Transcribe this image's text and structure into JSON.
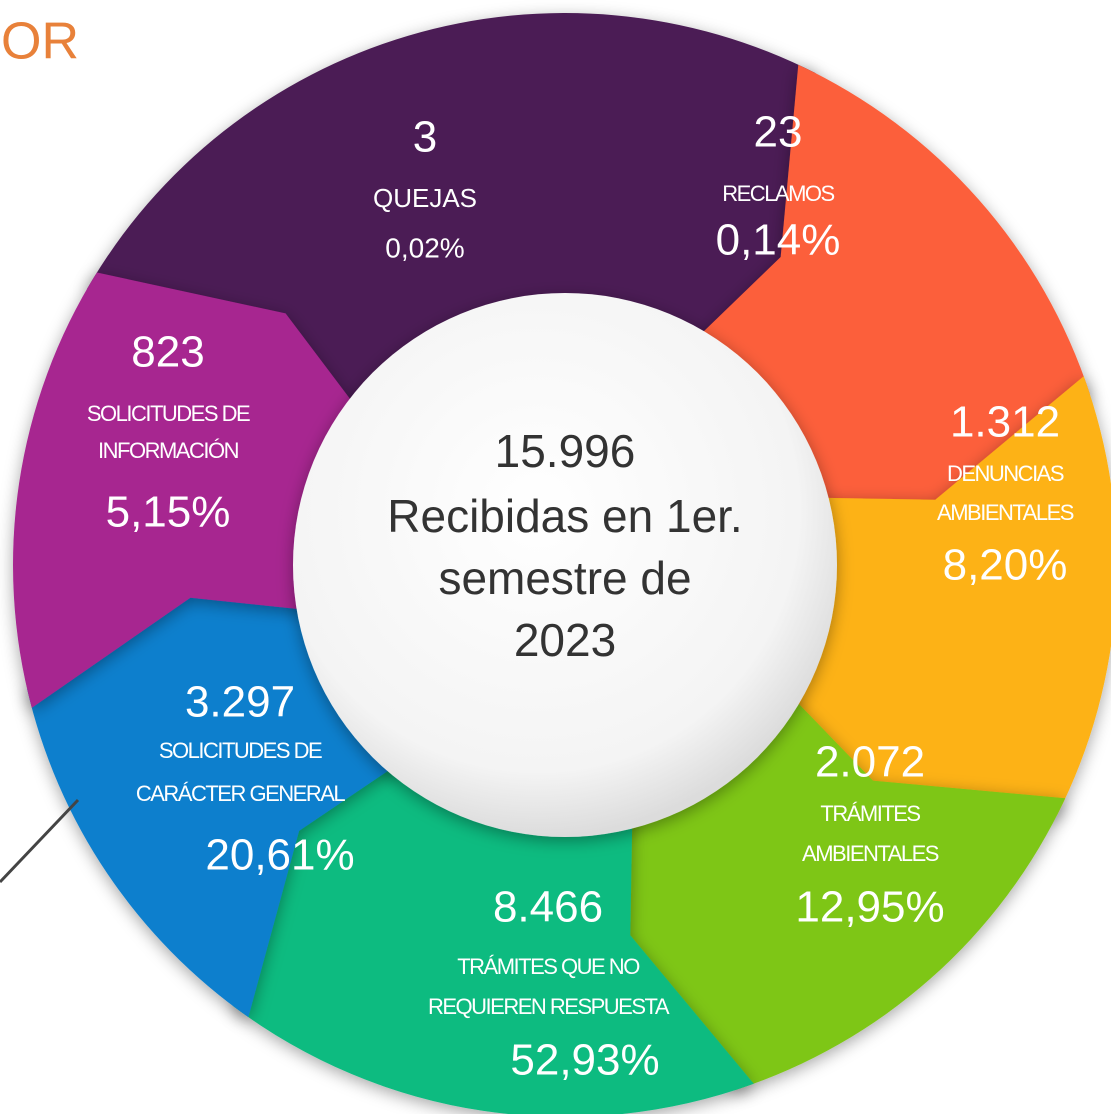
{
  "header": {
    "title": "OR"
  },
  "center": {
    "total": "15.996",
    "lines": [
      "Recibidas en 1er.",
      "semestre de",
      "2023"
    ]
  },
  "segments": [
    {
      "count": "3",
      "label": [
        "QUEJAS"
      ],
      "percent": "0,02%"
    },
    {
      "count": "23",
      "label": [
        "RECLAMOS"
      ],
      "percent": "0,14%"
    },
    {
      "count": "1.312",
      "label": [
        "DENUNCIAS",
        "AMBIENTALES"
      ],
      "percent": "8,20%"
    },
    {
      "count": "2.072",
      "label": [
        "TRÁMITES",
        "AMBIENTALES"
      ],
      "percent": "12,95%"
    },
    {
      "count": "8.466",
      "label": [
        "TRÁMITES QUE NO",
        "REQUIEREN RESPUESTA"
      ],
      "percent": "52,93%"
    },
    {
      "count": "3.297",
      "label": [
        "SOLICITUDES DE",
        "CARÁCTER GENERAL"
      ],
      "percent": "20,61%"
    },
    {
      "count": "823",
      "label": [
        "SOLICITUDES DE",
        "INFORMACIÓN"
      ],
      "percent": "5,15%"
    }
  ]
}
